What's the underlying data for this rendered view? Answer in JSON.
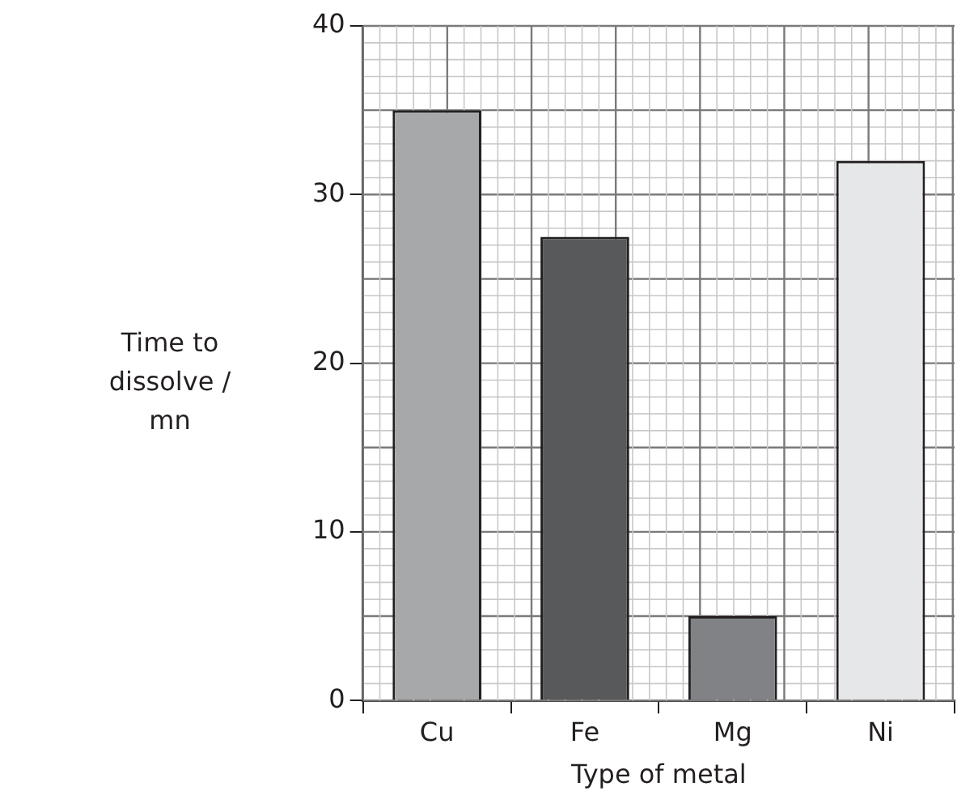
{
  "chart_data": {
    "type": "bar",
    "xlabel": "Type of metal",
    "ylabel": "Time to dissolve / mn",
    "categories": [
      "Cu",
      "Fe",
      "Mg",
      "Ni"
    ],
    "values": [
      35,
      27.5,
      5,
      32
    ],
    "colors": [
      "#a7a8aa",
      "#58595b",
      "#808285",
      "#e6e7e8"
    ],
    "ylim": [
      0,
      40
    ],
    "yticks": [
      0,
      10,
      20,
      30,
      40
    ],
    "grid": true
  }
}
